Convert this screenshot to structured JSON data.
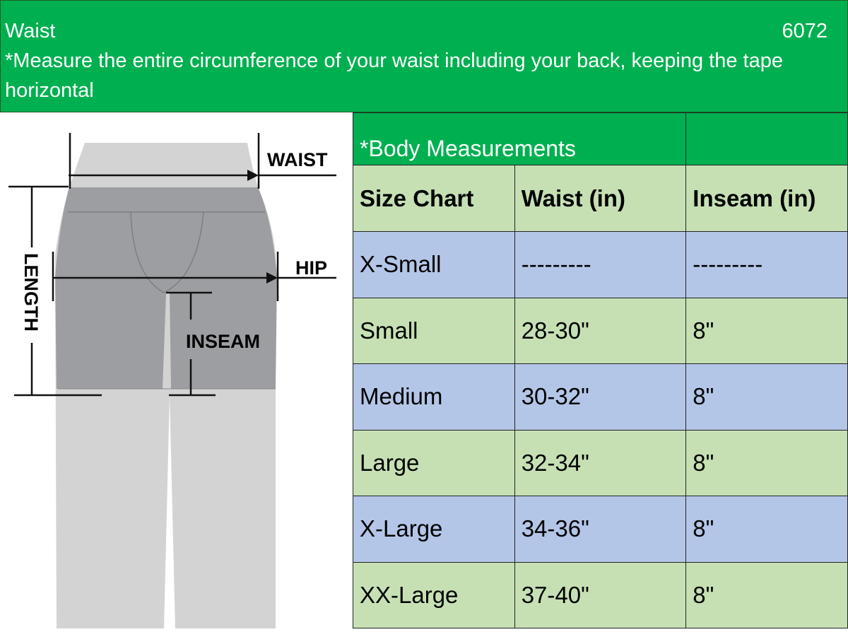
{
  "header": {
    "title": "Waist",
    "code": "6072",
    "instruction": "*Measure the entire circumference of your waist including your back, keeping the tape horizontal"
  },
  "illustration": {
    "labels": {
      "waist": "WAIST",
      "hip": "HIP",
      "length": "LENGTH",
      "inseam": "INSEAM"
    }
  },
  "table": {
    "title": "*Body Measurements",
    "columns": [
      "Size Chart",
      "Waist (in)",
      "Inseam (in)"
    ],
    "rows": [
      {
        "size": "X-Small",
        "waist": "---------",
        "inseam": "---------"
      },
      {
        "size": "Small",
        "waist": "28-30\"",
        "inseam": "8\""
      },
      {
        "size": "Medium",
        "waist": "30-32\"",
        "inseam": "8\""
      },
      {
        "size": "Large",
        "waist": "32-34\"",
        "inseam": "8\""
      },
      {
        "size": "X-Large",
        "waist": "34-36\"",
        "inseam": "8\""
      },
      {
        "size": "XX-Large",
        "waist": "37-40\"",
        "inseam": "8\""
      }
    ]
  },
  "colors": {
    "header_green": "#00b050",
    "light_green": "#c6e0b4",
    "light_blue": "#b4c6e7"
  }
}
